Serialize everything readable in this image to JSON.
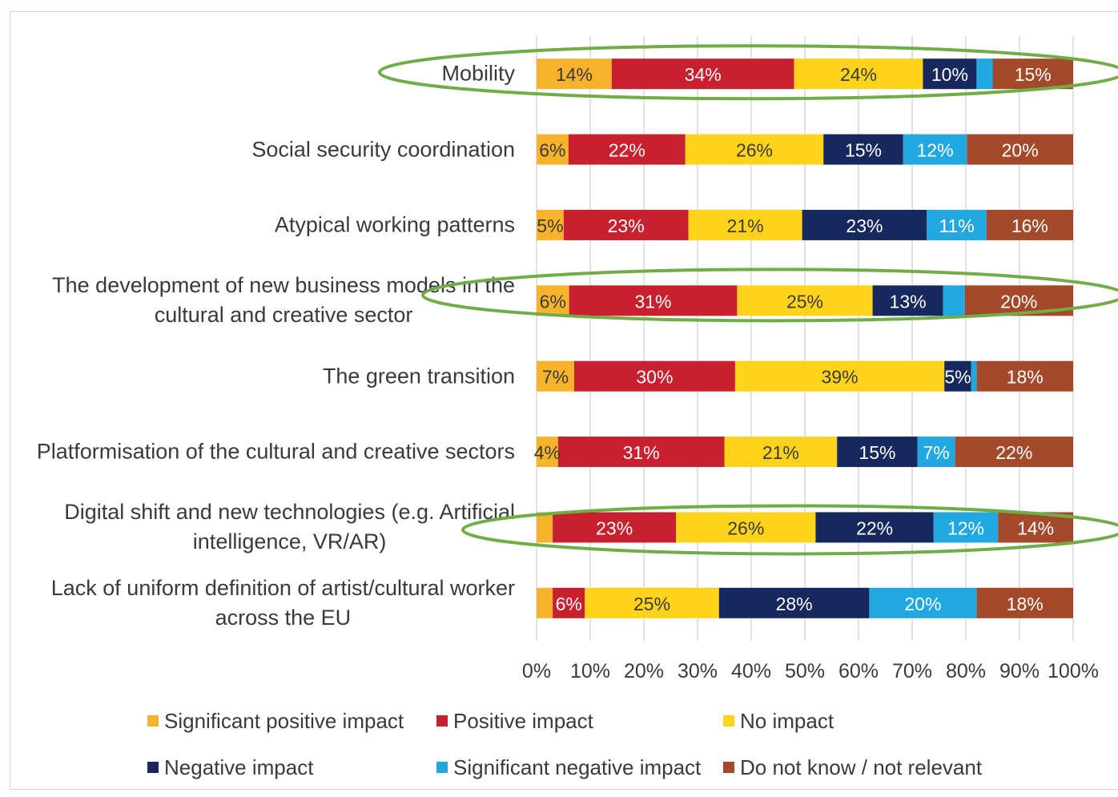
{
  "chart_data": {
    "type": "bar",
    "orientation": "horizontal",
    "stacked": true,
    "percent_stacked": true,
    "categories": [
      "Mobility",
      "Social security coordination",
      "Atypical working patterns",
      "The development of new business models in the\ncultural and creative sector",
      "The green transition",
      "Platformisation of the cultural and creative sectors",
      "Digital shift and new technologies (e.g. Artificial\nintelligence, VR/AR)",
      "Lack of uniform definition of artist/cultural worker\nacross the EU"
    ],
    "series": [
      {
        "name": "Significant positive impact",
        "color": "#F7B32B",
        "label_color": "#3A3A3A",
        "values": [
          14,
          6,
          5,
          6,
          7,
          4,
          3,
          3
        ],
        "labels": [
          "14%",
          "6%",
          "5%",
          "6%",
          "7%",
          "4%",
          "",
          ""
        ]
      },
      {
        "name": "Positive impact",
        "color": "#C8202E",
        "label_color": "#FFFFFF",
        "values": [
          34,
          22,
          23,
          31,
          30,
          31,
          23,
          6
        ],
        "labels": [
          "34%",
          "22%",
          "23%",
          "31%",
          "30%",
          "31%",
          "23%",
          "6%"
        ]
      },
      {
        "name": "No impact",
        "color": "#FFD31A",
        "label_color": "#3A3A3A",
        "values": [
          24,
          26,
          21,
          25,
          39,
          21,
          26,
          25
        ],
        "labels": [
          "24%",
          "26%",
          "21%",
          "25%",
          "39%",
          "21%",
          "26%",
          "25%"
        ]
      },
      {
        "name": "Negative impact",
        "color": "#16285E",
        "label_color": "#FFFFFF",
        "values": [
          10,
          15,
          23,
          13,
          5,
          15,
          22,
          28
        ],
        "labels": [
          "10%",
          "15%",
          "23%",
          "13%",
          "5%",
          "15%",
          "22%",
          "28%"
        ]
      },
      {
        "name": "Significant negative impact",
        "color": "#21A8E1",
        "label_color": "#FFFFFF",
        "values": [
          3,
          12,
          11,
          4,
          1,
          7,
          12,
          20
        ],
        "labels": [
          "",
          "12%",
          "11%",
          "",
          "",
          "7%",
          "12%",
          "20%"
        ]
      },
      {
        "name": "Do not know / not relevant",
        "color": "#A5492B",
        "label_color": "#FFFFFF",
        "values": [
          15,
          20,
          16,
          20,
          18,
          22,
          14,
          18
        ],
        "labels": [
          "15%",
          "20%",
          "16%",
          "20%",
          "18%",
          "22%",
          "14%",
          "18%"
        ]
      }
    ],
    "x_ticks": [
      "0%",
      "10%",
      "20%",
      "30%",
      "40%",
      "50%",
      "60%",
      "70%",
      "80%",
      "90%",
      "100%"
    ],
    "xlim": [
      0,
      100
    ],
    "grid": "vertical",
    "legend_position": "bottom"
  },
  "highlight": {
    "rows": [
      0,
      3,
      6
    ],
    "color": "#70AD47"
  }
}
